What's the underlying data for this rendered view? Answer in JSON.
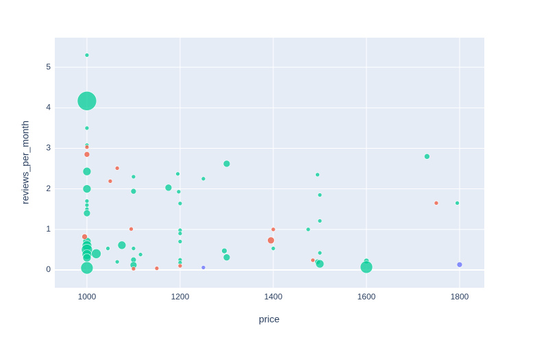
{
  "chart_data": {
    "type": "scatter",
    "x_label": "price",
    "y_label": "reviews_per_month",
    "xlim": [
      931,
      1853
    ],
    "ylim": [
      -0.44,
      5.73
    ],
    "xticks": [
      1000,
      1200,
      1400,
      1600,
      1800
    ],
    "yticks": [
      0,
      1,
      2,
      3,
      4,
      5
    ],
    "grid": true,
    "series": [
      {
        "color": "#00cc96",
        "x": [
          1000,
          1000,
          1000,
          1000,
          1000,
          1000,
          1000,
          1000,
          1000,
          1000,
          1000,
          1000,
          1000,
          1000,
          1000,
          1000,
          1020,
          1045,
          1065,
          1075,
          1100,
          1100,
          1100,
          1100,
          1100,
          1115,
          1175,
          1195,
          1197,
          1200,
          1200,
          1200,
          1200,
          1200,
          1200,
          1250,
          1295,
          1300,
          1300,
          1400,
          1475,
          1495,
          1500,
          1500,
          1500,
          1495,
          1500,
          1600,
          1600,
          1730,
          1795
        ],
        "values": [
          5.3,
          4.17,
          3.5,
          3.08,
          2.43,
          2.0,
          1.7,
          1.6,
          1.5,
          1.4,
          0.7,
          0.6,
          0.5,
          0.38,
          0.3,
          0.05,
          0.4,
          0.53,
          0.2,
          0.61,
          2.3,
          1.94,
          0.53,
          0.25,
          0.12,
          0.38,
          2.03,
          2.37,
          1.93,
          1.64,
          0.98,
          0.9,
          0.7,
          0.25,
          0.18,
          2.25,
          0.47,
          2.62,
          0.31,
          0.53,
          1.0,
          2.35,
          1.85,
          1.21,
          0.42,
          0.2,
          0.15,
          0.22,
          0.07,
          2.8,
          1.65
        ],
        "sizes": [
          2,
          13,
          2,
          2,
          5,
          5,
          2,
          2,
          2,
          4,
          5,
          6,
          7,
          6,
          5,
          8,
          6,
          2,
          2,
          5,
          2,
          3,
          2,
          3,
          4,
          2,
          4,
          2,
          2,
          2,
          2,
          2,
          2,
          2,
          2,
          2,
          3,
          4,
          4,
          2,
          2,
          2,
          2,
          2,
          2,
          3,
          5,
          3,
          8,
          3,
          2
        ]
      },
      {
        "color": "#ef553b",
        "x": [
          1000,
          1000,
          995,
          1050,
          1065,
          1095,
          1100,
          1150,
          1200,
          1395,
          1400,
          1485,
          1750
        ],
        "values": [
          3.03,
          2.85,
          0.82,
          2.19,
          2.51,
          1.01,
          0.03,
          0.04,
          0.1,
          0.73,
          1.0,
          0.24,
          1.65
        ],
        "sizes": [
          2,
          3,
          3,
          2,
          2,
          2,
          2,
          2,
          2,
          4,
          2,
          2,
          2
        ]
      },
      {
        "color": "#636efa",
        "x": [
          1250,
          1800
        ],
        "values": [
          0.06,
          0.13
        ],
        "sizes": [
          2,
          3
        ]
      }
    ]
  }
}
